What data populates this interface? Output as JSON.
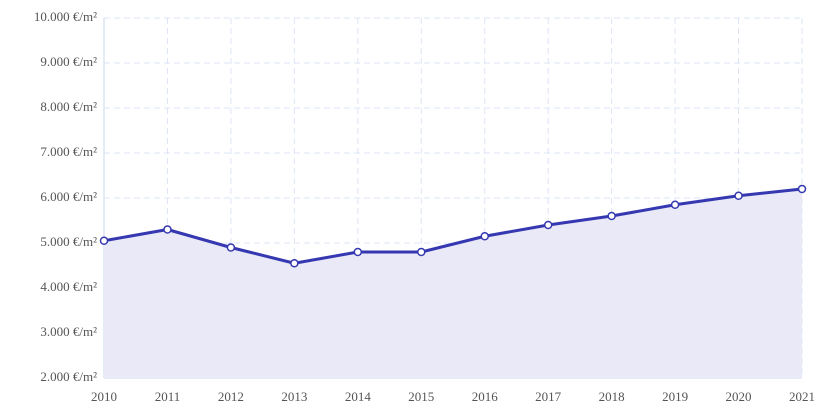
{
  "chart_data": {
    "type": "line",
    "x": [
      2010,
      2011,
      2012,
      2013,
      2014,
      2015,
      2016,
      2017,
      2018,
      2019,
      2020,
      2021
    ],
    "series": [
      {
        "color": "#3538b0",
        "fill": "#e9e9f8",
        "values": [
          5050,
          5300,
          4900,
          4550,
          4800,
          4800,
          5150,
          5400,
          5600,
          5850,
          6050,
          6200
        ]
      }
    ],
    "xlim": [
      2010,
      2021
    ],
    "xticks": [
      2010,
      2011,
      2012,
      2013,
      2014,
      2015,
      2016,
      2017,
      2018,
      2019,
      2020,
      2021
    ],
    "ylim": [
      2000,
      10000
    ],
    "yticks": [
      {
        "value": 2000,
        "label": "2.000 €/m²"
      },
      {
        "value": 3000,
        "label": "3.000 €/m²"
      },
      {
        "value": 4000,
        "label": "4.000 €/m²"
      },
      {
        "value": 5000,
        "label": "5.000 €/m²"
      },
      {
        "value": 6000,
        "label": "6.000 €/m²"
      },
      {
        "value": 7000,
        "label": "7.000 €/m²"
      },
      {
        "value": 8000,
        "label": "8.000 €/m²"
      },
      {
        "value": 9000,
        "label": "9.000 €/m²"
      },
      {
        "value": 10000,
        "label": "10.000 €/m²"
      }
    ],
    "grid": true
  }
}
